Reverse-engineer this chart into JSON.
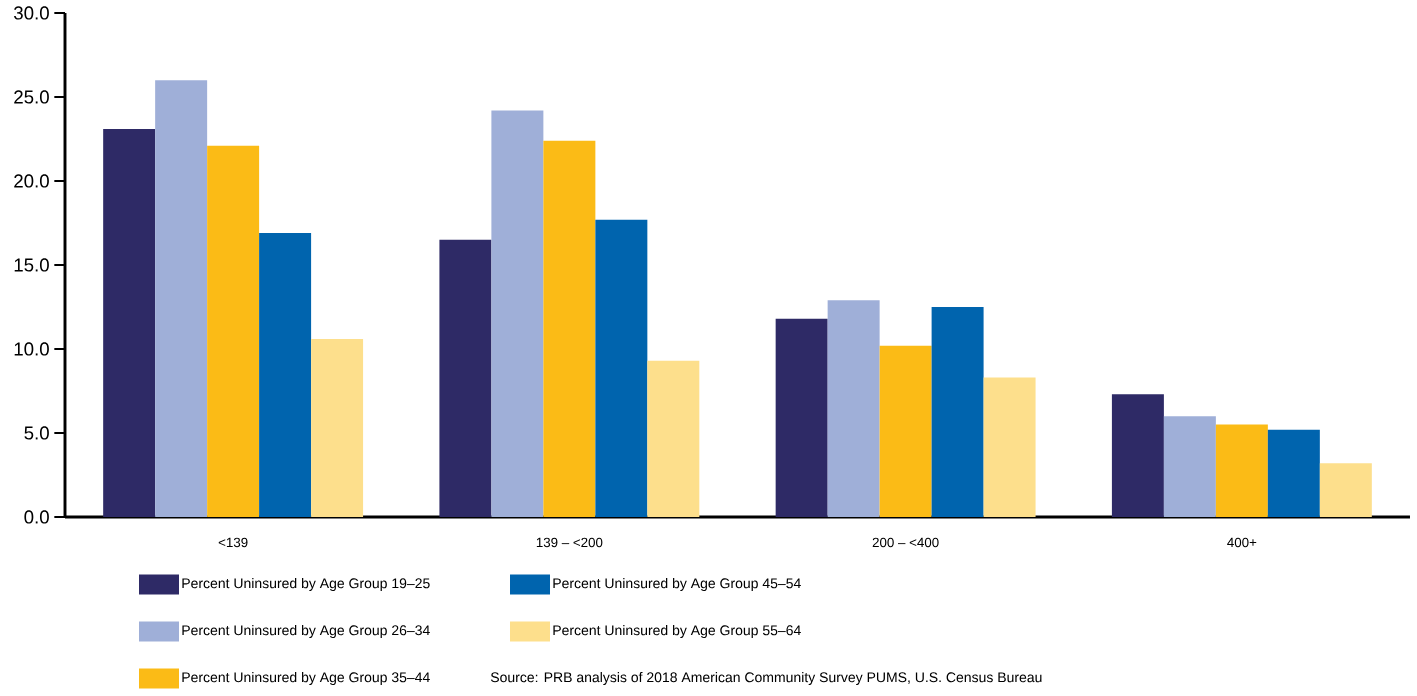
{
  "chart_data": {
    "type": "bar",
    "categories": [
      "<139",
      "139 – <200",
      "200 – <400",
      "400+"
    ],
    "series": [
      {
        "name": "Percent Uninsured by Age Group 19–25",
        "color": "#2e2a66",
        "values": [
          23.1,
          16.5,
          11.8,
          7.3
        ]
      },
      {
        "name": "Percent Uninsured by Age Group 26–34",
        "color": "#9fafd8",
        "values": [
          26.0,
          24.2,
          12.9,
          6.0
        ]
      },
      {
        "name": "Percent Uninsured by Age Group 35–44",
        "color": "#fbbb16",
        "values": [
          22.1,
          22.4,
          10.2,
          5.5
        ]
      },
      {
        "name": "Percent Uninsured by Age Group 45–54",
        "color": "#0064ae",
        "values": [
          16.9,
          17.7,
          12.5,
          5.2
        ]
      },
      {
        "name": "Percent Uninsured by Age Group 55–64",
        "color": "#fddf8c",
        "values": [
          10.6,
          9.3,
          8.3,
          3.2
        ]
      }
    ],
    "ylim": [
      0,
      30
    ],
    "yticks": [
      {
        "value": 0,
        "label": "0.0"
      },
      {
        "value": 5,
        "label": "5.0"
      },
      {
        "value": 10,
        "label": "10.0"
      },
      {
        "value": 15,
        "label": "15.0"
      },
      {
        "value": 20,
        "label": "20.0"
      },
      {
        "value": 25,
        "label": "25.0"
      },
      {
        "value": 30,
        "label": "30.0"
      }
    ],
    "legend": "bottom",
    "grid": false,
    "annotations": [
      "Source: PRB analysis of 2018 American Community Survey PUMS, U.S. Census Bureau"
    ]
  }
}
